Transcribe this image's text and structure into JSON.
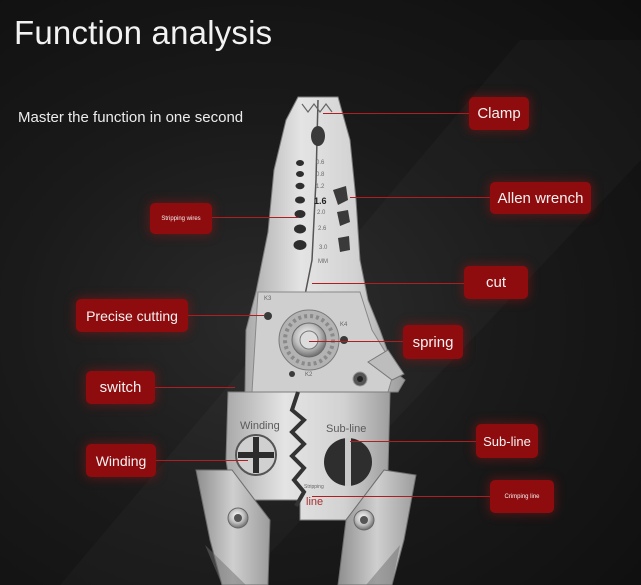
{
  "header": {
    "title": "Function analysis",
    "subtitle": "Master the function in one second"
  },
  "callouts": {
    "clamp": "Clamp",
    "allen_wrench": "Allen wrench",
    "stripping_wires": "Stripping wires",
    "cut": "cut",
    "precise_cutting": "Precise cutting",
    "spring": "spring",
    "switch": "switch",
    "winding": "Winding",
    "sub_line": "Sub-line",
    "crimping_line": "Crimping line"
  },
  "tool_markings": {
    "scale": [
      "0.6",
      "0.8",
      "1.2",
      "1.6",
      "2.0",
      "2.6",
      "3.0"
    ],
    "scale_unit": "MM",
    "k3": "K3",
    "k4": "K4",
    "k2": "K2",
    "winding": "Winding",
    "sub_line": "Sub-line",
    "line": "line",
    "small_mark": "Stripping"
  },
  "colors": {
    "callout_bg": "#8e0c0e",
    "leader": "#b01e22",
    "background": "#141414",
    "steel": "#d9d9d9"
  }
}
